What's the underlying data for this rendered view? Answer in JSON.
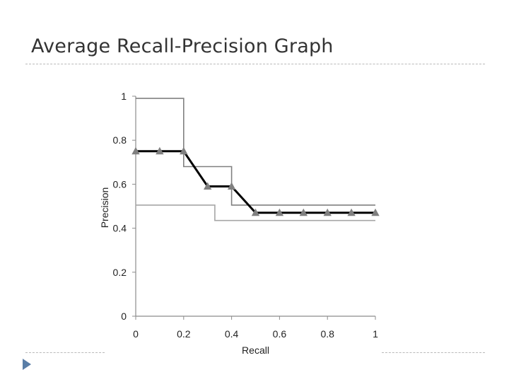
{
  "slide": {
    "title": "Average Recall-Precision Graph"
  },
  "chart_data": {
    "type": "line",
    "xlabel": "Recall",
    "ylabel": "Precision",
    "xlim": [
      0,
      1
    ],
    "ylim": [
      0,
      1
    ],
    "x_ticks": [
      "0",
      "0.2",
      "0.4",
      "0.6",
      "0.8",
      "1"
    ],
    "y_ticks": [
      "0",
      "0.2",
      "0.4",
      "0.6",
      "0.8",
      "1"
    ],
    "grid": false,
    "legend": "none",
    "series": [
      {
        "style": "step",
        "color": "#808080",
        "width": 1.6,
        "x": [
          0,
          0.2,
          0.2,
          0.4,
          0.4,
          1.0
        ],
        "y": [
          0.99,
          0.99,
          0.68,
          0.68,
          0.505,
          0.505
        ]
      },
      {
        "style": "step",
        "color": "#a6a6a6",
        "width": 1.6,
        "x": [
          0,
          0.33,
          0.33,
          1.0
        ],
        "y": [
          0.505,
          0.505,
          0.435,
          0.435
        ]
      },
      {
        "style": "line",
        "color": "#000000",
        "width": 3,
        "marker": "triangle",
        "marker_color": "#808080",
        "x": [
          0,
          0.1,
          0.2,
          0.3,
          0.4,
          0.5,
          0.6,
          0.7,
          0.8,
          0.9,
          1.0
        ],
        "y": [
          0.75,
          0.75,
          0.75,
          0.59,
          0.59,
          0.47,
          0.47,
          0.47,
          0.47,
          0.47,
          0.47
        ]
      }
    ]
  }
}
